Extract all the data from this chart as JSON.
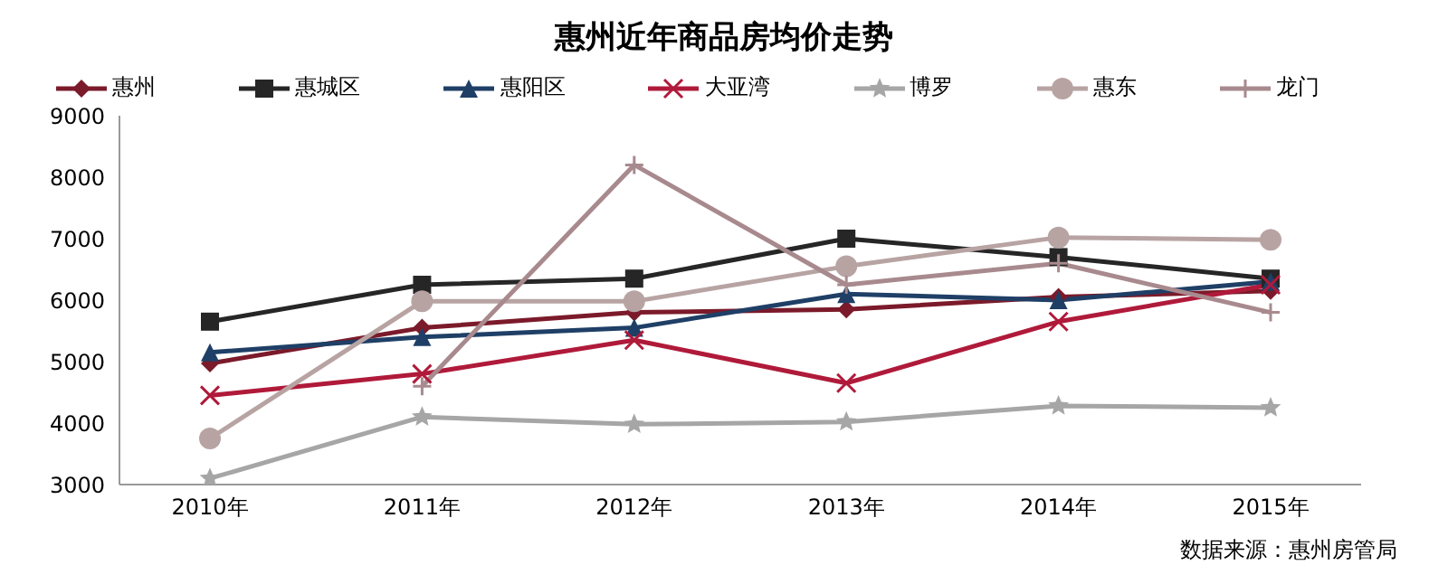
{
  "chart_data": {
    "type": "line",
    "title": "惠州近年商品房均价走势",
    "categories": [
      "2010年",
      "2011年",
      "2012年",
      "2013年",
      "2014年",
      "2015年"
    ],
    "series": [
      {
        "name": "惠州",
        "color": "#7b1a2a",
        "marker": "diamond",
        "values": [
          4970,
          5550,
          5800,
          5850,
          6050,
          6150
        ]
      },
      {
        "name": "惠城区",
        "color": "#262626",
        "marker": "square",
        "values": [
          5650,
          6250,
          6350,
          7000,
          6700,
          6350
        ]
      },
      {
        "name": "惠阳区",
        "color": "#1f3f66",
        "marker": "triangle",
        "values": [
          5150,
          5400,
          5550,
          6100,
          6000,
          6300
        ]
      },
      {
        "name": "大亚湾",
        "color": "#b01a3a",
        "marker": "cross",
        "values": [
          4450,
          4800,
          5350,
          4650,
          5650,
          6250
        ]
      },
      {
        "name": "博罗",
        "color": "#a6a6a6",
        "marker": "star",
        "values": [
          3100,
          4100,
          3980,
          4020,
          4280,
          4250
        ]
      },
      {
        "name": "惠东",
        "color": "#b8a3a3",
        "marker": "circle",
        "values": [
          3750,
          5980,
          5980,
          6550,
          7020,
          6980
        ]
      },
      {
        "name": "龙门",
        "color": "#a88a8e",
        "marker": "plus",
        "values": [
          null,
          4600,
          8200,
          6250,
          6600,
          5800
        ]
      }
    ],
    "ylim": [
      3000,
      9000
    ],
    "yticks": [
      3000,
      4000,
      5000,
      6000,
      7000,
      8000,
      9000
    ],
    "grid": false,
    "legend": "top",
    "annotations": [
      "数据来源：惠州房管局"
    ]
  }
}
